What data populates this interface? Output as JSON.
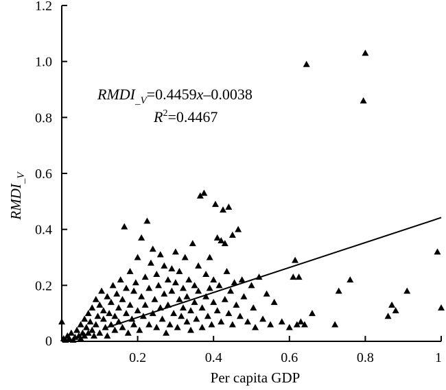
{
  "chart_data": {
    "type": "scatter",
    "title": "",
    "xlabel": "Per capita GDP",
    "ylabel": "RMDI_V",
    "xlim": [
      0,
      1
    ],
    "ylim": [
      0,
      1.2
    ],
    "x_ticks": [
      "0.2",
      "0.4",
      "0.6",
      "0.8",
      "1"
    ],
    "y_ticks": [
      "0",
      "0.2",
      "0.4",
      "0.6",
      "0.8",
      "1.0",
      "1.2"
    ],
    "grid": false,
    "marker": "triangle",
    "marker_color": "#000000",
    "annotation": {
      "equation_lhs": "RMDI",
      "equation_sub": "_V",
      "equation_rhs_prefix": "=0.4459",
      "equation_var": "x",
      "equation_rhs_suffix": "–0.0038",
      "r2_label": "R",
      "r2_sup": "2",
      "r2_value": "=0.4467"
    },
    "trendline": {
      "slope": 0.4459,
      "intercept": -0.0038,
      "x_range": [
        0,
        1
      ]
    },
    "series": [
      {
        "points": [
          [
            0.0,
            0.07
          ],
          [
            0.005,
            0.01
          ],
          [
            0.01,
            0.005
          ],
          [
            0.015,
            0.02
          ],
          [
            0.02,
            0.01
          ],
          [
            0.025,
            0.03
          ],
          [
            0.03,
            0.005
          ],
          [
            0.035,
            0.015
          ],
          [
            0.04,
            0.04
          ],
          [
            0.045,
            0.02
          ],
          [
            0.05,
            0.06
          ],
          [
            0.05,
            0.01
          ],
          [
            0.055,
            0.03
          ],
          [
            0.06,
            0.08
          ],
          [
            0.06,
            0.02
          ],
          [
            0.065,
            0.05
          ],
          [
            0.07,
            0.1
          ],
          [
            0.07,
            0.03
          ],
          [
            0.075,
            0.07
          ],
          [
            0.08,
            0.12
          ],
          [
            0.08,
            0.04
          ],
          [
            0.085,
            0.02
          ],
          [
            0.09,
            0.15
          ],
          [
            0.09,
            0.06
          ],
          [
            0.095,
            0.09
          ],
          [
            0.1,
            0.13
          ],
          [
            0.1,
            0.03
          ],
          [
            0.105,
            0.18
          ],
          [
            0.11,
            0.08
          ],
          [
            0.11,
            0.11
          ],
          [
            0.115,
            0.05
          ],
          [
            0.12,
            0.16
          ],
          [
            0.12,
            0.02
          ],
          [
            0.125,
            0.1
          ],
          [
            0.13,
            0.14
          ],
          [
            0.13,
            0.06
          ],
          [
            0.135,
            0.2
          ],
          [
            0.14,
            0.09
          ],
          [
            0.14,
            0.04
          ],
          [
            0.145,
            0.17
          ],
          [
            0.15,
            0.12
          ],
          [
            0.15,
            0.07
          ],
          [
            0.155,
            0.22
          ],
          [
            0.16,
            0.05
          ],
          [
            0.16,
            0.15
          ],
          [
            0.165,
            0.41
          ],
          [
            0.17,
            0.1
          ],
          [
            0.17,
            0.19
          ],
          [
            0.175,
            0.03
          ],
          [
            0.18,
            0.13
          ],
          [
            0.18,
            0.25
          ],
          [
            0.185,
            0.08
          ],
          [
            0.19,
            0.18
          ],
          [
            0.19,
            0.06
          ],
          [
            0.195,
            0.21
          ],
          [
            0.2,
            0.11
          ],
          [
            0.2,
            0.3
          ],
          [
            0.205,
            0.04
          ],
          [
            0.21,
            0.16
          ],
          [
            0.21,
            0.37
          ],
          [
            0.215,
            0.09
          ],
          [
            0.22,
            0.23
          ],
          [
            0.22,
            0.13
          ],
          [
            0.225,
            0.43
          ],
          [
            0.23,
            0.06
          ],
          [
            0.23,
            0.19
          ],
          [
            0.235,
            0.28
          ],
          [
            0.24,
            0.1
          ],
          [
            0.24,
            0.33
          ],
          [
            0.245,
            0.15
          ],
          [
            0.25,
            0.05
          ],
          [
            0.25,
            0.24
          ],
          [
            0.255,
            0.2
          ],
          [
            0.26,
            0.12
          ],
          [
            0.26,
            0.31
          ],
          [
            0.265,
            0.08
          ],
          [
            0.27,
            0.17
          ],
          [
            0.27,
            0.27
          ],
          [
            0.275,
            0.03
          ],
          [
            0.28,
            0.22
          ],
          [
            0.28,
            0.13
          ],
          [
            0.285,
            0.06
          ],
          [
            0.29,
            0.18
          ],
          [
            0.29,
            0.26
          ],
          [
            0.295,
            0.1
          ],
          [
            0.3,
            0.21
          ],
          [
            0.3,
            0.32
          ],
          [
            0.305,
            0.05
          ],
          [
            0.31,
            0.15
          ],
          [
            0.31,
            0.25
          ],
          [
            0.315,
            0.09
          ],
          [
            0.32,
            0.19
          ],
          [
            0.32,
            0.12
          ],
          [
            0.325,
            0.3
          ],
          [
            0.33,
            0.07
          ],
          [
            0.33,
            0.16
          ],
          [
            0.335,
            0.22
          ],
          [
            0.34,
            0.11
          ],
          [
            0.34,
            0.04
          ],
          [
            0.345,
            0.35
          ],
          [
            0.35,
            0.14
          ],
          [
            0.35,
            0.2
          ],
          [
            0.355,
            0.08
          ],
          [
            0.36,
            0.27
          ],
          [
            0.36,
            0.18
          ],
          [
            0.365,
            0.52
          ],
          [
            0.37,
            0.12
          ],
          [
            0.37,
            0.05
          ],
          [
            0.375,
            0.53
          ],
          [
            0.38,
            0.16
          ],
          [
            0.38,
            0.24
          ],
          [
            0.385,
            0.09
          ],
          [
            0.39,
            0.3
          ],
          [
            0.39,
            0.19
          ],
          [
            0.395,
            0.06
          ],
          [
            0.4,
            0.14
          ],
          [
            0.4,
            0.22
          ],
          [
            0.405,
            0.49
          ],
          [
            0.41,
            0.37
          ],
          [
            0.41,
            0.11
          ],
          [
            0.415,
            0.2
          ],
          [
            0.42,
            0.36
          ],
          [
            0.42,
            0.07
          ],
          [
            0.425,
            0.47
          ],
          [
            0.43,
            0.15
          ],
          [
            0.43,
            0.35
          ],
          [
            0.435,
            0.25
          ],
          [
            0.44,
            0.1
          ],
          [
            0.44,
            0.48
          ],
          [
            0.445,
            0.18
          ],
          [
            0.45,
            0.06
          ],
          [
            0.45,
            0.38
          ],
          [
            0.455,
            0.21
          ],
          [
            0.46,
            0.13
          ],
          [
            0.465,
            0.4
          ],
          [
            0.47,
            0.09
          ],
          [
            0.475,
            0.22
          ],
          [
            0.48,
            0.16
          ],
          [
            0.49,
            0.07
          ],
          [
            0.5,
            0.2
          ],
          [
            0.505,
            0.12
          ],
          [
            0.51,
            0.05
          ],
          [
            0.52,
            0.23
          ],
          [
            0.53,
            0.08
          ],
          [
            0.54,
            0.17
          ],
          [
            0.55,
            0.06
          ],
          [
            0.56,
            0.14
          ],
          [
            0.58,
            0.07
          ],
          [
            0.6,
            0.05
          ],
          [
            0.61,
            0.23
          ],
          [
            0.615,
            0.29
          ],
          [
            0.62,
            0.06
          ],
          [
            0.625,
            0.23
          ],
          [
            0.63,
            0.07
          ],
          [
            0.64,
            0.06
          ],
          [
            0.645,
            0.99
          ],
          [
            0.66,
            0.1
          ],
          [
            0.72,
            0.06
          ],
          [
            0.73,
            0.18
          ],
          [
            0.76,
            0.22
          ],
          [
            0.795,
            0.86
          ],
          [
            0.8,
            1.03
          ],
          [
            0.86,
            0.09
          ],
          [
            0.87,
            0.13
          ],
          [
            0.88,
            0.11
          ],
          [
            0.91,
            0.18
          ],
          [
            0.99,
            0.32
          ],
          [
            1.0,
            0.12
          ]
        ]
      }
    ]
  }
}
